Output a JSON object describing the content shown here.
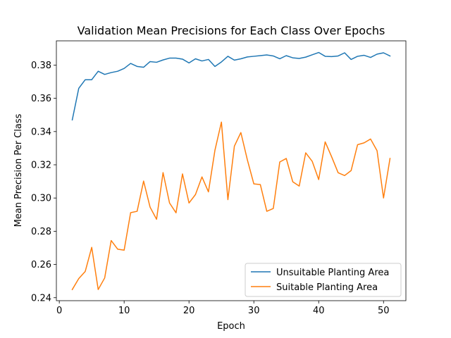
{
  "chart_data": {
    "type": "line",
    "title": "Validation Mean Precisions for Each Class Over Epochs",
    "xlabel": "Epoch",
    "ylabel": "Mean Precision Per Class",
    "xlim": [
      -0.45,
      53.45
    ],
    "ylim": [
      0.2382,
      0.3946
    ],
    "xticks": [
      0,
      10,
      20,
      30,
      40,
      50
    ],
    "yticks": [
      0.24,
      0.26,
      0.28,
      0.3,
      0.32,
      0.34,
      0.36,
      0.38
    ],
    "ytick_labels": [
      "0.24",
      "0.26",
      "0.28",
      "0.30",
      "0.32",
      "0.34",
      "0.36",
      "0.38"
    ],
    "legend_position": "lower-right",
    "x": [
      2,
      3,
      4,
      5,
      6,
      7,
      8,
      9,
      10,
      11,
      12,
      13,
      14,
      15,
      16,
      17,
      18,
      19,
      20,
      21,
      22,
      23,
      24,
      25,
      26,
      27,
      28,
      29,
      30,
      31,
      32,
      33,
      34,
      35,
      36,
      37,
      38,
      39,
      40,
      41,
      42,
      43,
      44,
      45,
      46,
      47,
      48,
      49,
      50,
      51
    ],
    "series": [
      {
        "name": "Unsuitable Planting Area",
        "color": "#1f77b4",
        "values": [
          0.347,
          0.366,
          0.3712,
          0.3712,
          0.3763,
          0.3744,
          0.3755,
          0.3763,
          0.378,
          0.381,
          0.3792,
          0.3787,
          0.3821,
          0.3817,
          0.3831,
          0.3842,
          0.3842,
          0.3836,
          0.3813,
          0.3838,
          0.3825,
          0.3834,
          0.3792,
          0.3819,
          0.3853,
          0.383,
          0.3838,
          0.3849,
          0.3853,
          0.3857,
          0.3861,
          0.3855,
          0.3838,
          0.3857,
          0.3844,
          0.384,
          0.3848,
          0.3862,
          0.3876,
          0.3853,
          0.3851,
          0.3855,
          0.3874,
          0.3834,
          0.3853,
          0.3859,
          0.3846,
          0.3866,
          0.3874,
          0.3855
        ]
      },
      {
        "name": "Suitable Planting Area",
        "color": "#ff7f0e",
        "values": [
          0.2449,
          0.2515,
          0.2558,
          0.2703,
          0.2449,
          0.2519,
          0.2744,
          0.2692,
          0.2686,
          0.2912,
          0.292,
          0.3102,
          0.2945,
          0.2872,
          0.3153,
          0.297,
          0.2911,
          0.3145,
          0.297,
          0.3021,
          0.3127,
          0.3037,
          0.3287,
          0.3457,
          0.299,
          0.3312,
          0.3394,
          0.323,
          0.3085,
          0.3081,
          0.292,
          0.2937,
          0.3217,
          0.3238,
          0.3098,
          0.3072,
          0.3272,
          0.3221,
          0.3111,
          0.3338,
          0.3248,
          0.3152,
          0.3135,
          0.3165,
          0.3321,
          0.3332,
          0.3355,
          0.3285,
          0.3,
          0.3238
        ]
      }
    ]
  }
}
